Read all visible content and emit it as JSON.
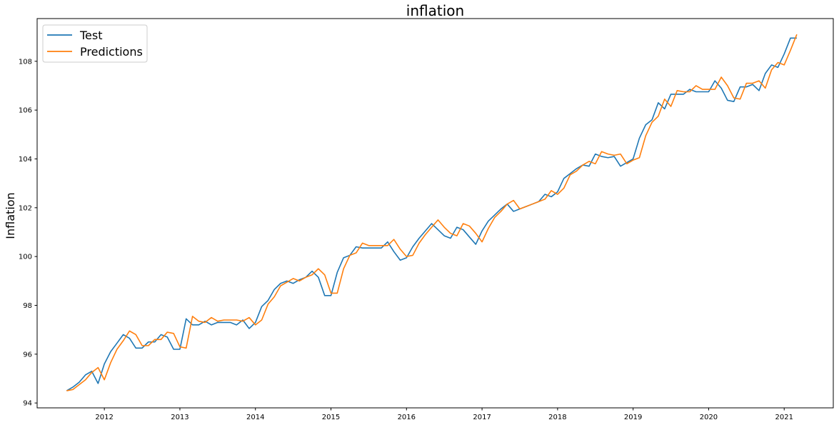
{
  "chart_data": {
    "type": "line",
    "title": "inflation",
    "xlabel": "",
    "ylabel": "Inflation",
    "grid": false,
    "legend_position": "top-left",
    "xlim": [
      2011.11,
      2021.65
    ],
    "ylim": [
      93.8,
      109.75
    ],
    "x_ticks": [
      2012,
      2013,
      2014,
      2015,
      2016,
      2017,
      2018,
      2019,
      2020,
      2021
    ],
    "x_tick_labels": [
      "2012",
      "2013",
      "2014",
      "2015",
      "2016",
      "2017",
      "2018",
      "2019",
      "2020",
      "2021"
    ],
    "y_ticks": [
      94,
      96,
      98,
      100,
      102,
      104,
      106,
      108
    ],
    "y_tick_labels": [
      "94",
      "96",
      "98",
      "100",
      "102",
      "104",
      "106",
      "108"
    ],
    "series": [
      {
        "name": "Test",
        "color": "#1f77b4",
        "x": [
          2011.5,
          2011.583,
          2011.667,
          2011.75,
          2011.833,
          2011.917,
          2012.0,
          2012.083,
          2012.167,
          2012.25,
          2012.333,
          2012.417,
          2012.5,
          2012.583,
          2012.667,
          2012.75,
          2012.833,
          2012.917,
          2013.0,
          2013.083,
          2013.167,
          2013.25,
          2013.333,
          2013.417,
          2013.5,
          2013.583,
          2013.667,
          2013.75,
          2013.833,
          2013.917,
          2014.0,
          2014.083,
          2014.167,
          2014.25,
          2014.333,
          2014.417,
          2014.5,
          2014.583,
          2014.667,
          2014.75,
          2014.833,
          2014.917,
          2015.0,
          2015.083,
          2015.167,
          2015.25,
          2015.333,
          2015.417,
          2015.5,
          2015.583,
          2015.667,
          2015.75,
          2015.833,
          2015.917,
          2016.0,
          2016.083,
          2016.167,
          2016.25,
          2016.333,
          2016.417,
          2016.5,
          2016.583,
          2016.667,
          2016.75,
          2016.833,
          2016.917,
          2017.0,
          2017.083,
          2017.167,
          2017.25,
          2017.333,
          2017.417,
          2017.5,
          2017.583,
          2017.667,
          2017.75,
          2017.833,
          2017.917,
          2018.0,
          2018.083,
          2018.167,
          2018.25,
          2018.333,
          2018.417,
          2018.5,
          2018.583,
          2018.667,
          2018.75,
          2018.833,
          2018.917,
          2019.0,
          2019.083,
          2019.167,
          2019.25,
          2019.333,
          2019.417,
          2019.5,
          2019.583,
          2019.667,
          2019.75,
          2019.833,
          2019.917,
          2020.0,
          2020.083,
          2020.167,
          2020.25,
          2020.333,
          2020.417,
          2020.5,
          2020.583,
          2020.667,
          2020.75,
          2020.833,
          2020.917,
          2021.0,
          2021.083,
          2021.167
        ],
        "values": [
          94.5,
          94.65,
          94.85,
          95.15,
          95.3,
          94.8,
          95.6,
          96.1,
          96.45,
          96.8,
          96.65,
          96.25,
          96.25,
          96.5,
          96.5,
          96.8,
          96.7,
          96.2,
          96.2,
          97.45,
          97.2,
          97.2,
          97.35,
          97.2,
          97.3,
          97.3,
          97.3,
          97.2,
          97.4,
          97.05,
          97.3,
          97.95,
          98.2,
          98.65,
          98.9,
          99.0,
          98.9,
          99.05,
          99.15,
          99.4,
          99.15,
          98.4,
          98.4,
          99.35,
          99.95,
          100.05,
          100.4,
          100.35,
          100.35,
          100.35,
          100.35,
          100.6,
          100.2,
          99.85,
          99.95,
          100.4,
          100.75,
          101.05,
          101.35,
          101.1,
          100.85,
          100.75,
          101.2,
          101.1,
          100.8,
          100.5,
          101.05,
          101.45,
          101.7,
          101.95,
          102.15,
          101.85,
          101.95,
          102.05,
          102.15,
          102.25,
          102.55,
          102.45,
          102.65,
          103.2,
          103.4,
          103.6,
          103.75,
          103.7,
          104.2,
          104.1,
          104.05,
          104.1,
          103.7,
          103.85,
          104.0,
          104.85,
          105.4,
          105.6,
          106.3,
          106.05,
          106.65,
          106.65,
          106.65,
          106.85,
          106.75,
          106.75,
          106.75,
          107.2,
          106.9,
          106.4,
          106.35,
          106.95,
          106.95,
          107.05,
          106.8,
          107.5,
          107.85,
          107.75,
          108.3,
          108.95,
          108.95
        ]
      },
      {
        "name": "Predictions",
        "color": "#ff7f0e",
        "x": [
          2011.5,
          2011.583,
          2011.667,
          2011.75,
          2011.833,
          2011.917,
          2012.0,
          2012.083,
          2012.167,
          2012.25,
          2012.333,
          2012.417,
          2012.5,
          2012.583,
          2012.667,
          2012.75,
          2012.833,
          2012.917,
          2013.0,
          2013.083,
          2013.167,
          2013.25,
          2013.333,
          2013.417,
          2013.5,
          2013.583,
          2013.667,
          2013.75,
          2013.833,
          2013.917,
          2014.0,
          2014.083,
          2014.167,
          2014.25,
          2014.333,
          2014.417,
          2014.5,
          2014.583,
          2014.667,
          2014.75,
          2014.833,
          2014.917,
          2015.0,
          2015.083,
          2015.167,
          2015.25,
          2015.333,
          2015.417,
          2015.5,
          2015.583,
          2015.667,
          2015.75,
          2015.833,
          2015.917,
          2016.0,
          2016.083,
          2016.167,
          2016.25,
          2016.333,
          2016.417,
          2016.5,
          2016.583,
          2016.667,
          2016.75,
          2016.833,
          2016.917,
          2017.0,
          2017.083,
          2017.167,
          2017.25,
          2017.333,
          2017.417,
          2017.5,
          2017.583,
          2017.667,
          2017.75,
          2017.833,
          2017.917,
          2018.0,
          2018.083,
          2018.167,
          2018.25,
          2018.333,
          2018.417,
          2018.5,
          2018.583,
          2018.667,
          2018.75,
          2018.833,
          2018.917,
          2019.0,
          2019.083,
          2019.167,
          2019.25,
          2019.333,
          2019.417,
          2019.5,
          2019.583,
          2019.667,
          2019.75,
          2019.833,
          2019.917,
          2020.0,
          2020.083,
          2020.167,
          2020.25,
          2020.333,
          2020.417,
          2020.5,
          2020.583,
          2020.667,
          2020.75,
          2020.833,
          2020.917,
          2021.0,
          2021.083,
          2021.167
        ],
        "values": [
          94.5,
          94.55,
          94.75,
          94.95,
          95.25,
          95.45,
          94.95,
          95.65,
          96.2,
          96.55,
          96.95,
          96.8,
          96.35,
          96.35,
          96.6,
          96.6,
          96.9,
          96.85,
          96.3,
          96.25,
          97.55,
          97.35,
          97.3,
          97.5,
          97.35,
          97.4,
          97.4,
          97.4,
          97.35,
          97.5,
          97.2,
          97.4,
          98.05,
          98.35,
          98.8,
          98.95,
          99.1,
          99.0,
          99.15,
          99.25,
          99.5,
          99.25,
          98.5,
          98.5,
          99.5,
          100.05,
          100.15,
          100.55,
          100.45,
          100.45,
          100.45,
          100.45,
          100.7,
          100.3,
          100.0,
          100.05,
          100.55,
          100.9,
          101.2,
          101.5,
          101.2,
          100.95,
          100.85,
          101.35,
          101.25,
          100.95,
          100.6,
          101.15,
          101.6,
          101.85,
          102.15,
          102.3,
          101.95,
          102.05,
          102.15,
          102.25,
          102.35,
          102.7,
          102.55,
          102.8,
          103.35,
          103.5,
          103.75,
          103.9,
          103.8,
          104.3,
          104.2,
          104.15,
          104.2,
          103.8,
          103.95,
          104.05,
          104.95,
          105.5,
          105.75,
          106.45,
          106.15,
          106.8,
          106.75,
          106.75,
          107.0,
          106.85,
          106.85,
          106.85,
          107.35,
          107.0,
          106.5,
          106.45,
          107.1,
          107.1,
          107.2,
          106.9,
          107.65,
          107.95,
          107.85,
          108.45,
          109.1
        ]
      }
    ]
  }
}
